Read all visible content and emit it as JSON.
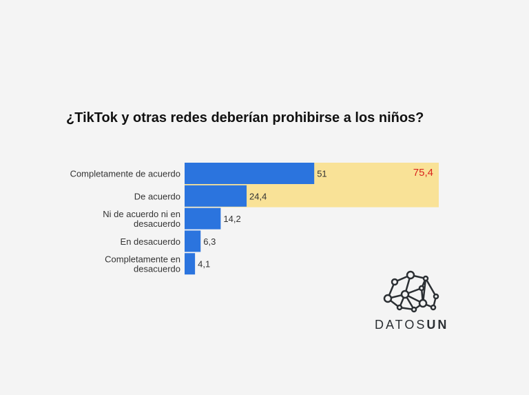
{
  "chart_data": {
    "type": "bar",
    "orientation": "horizontal",
    "title": "¿TikTok y otras redes deberían prohibirse a los niños?",
    "categories": [
      [
        "Completamente de acuerdo"
      ],
      [
        "De acuerdo"
      ],
      [
        "Ni de acuerdo ni en",
        "desacuerdo"
      ],
      [
        "En desacuerdo"
      ],
      [
        "Completamente en",
        "desacuerdo"
      ]
    ],
    "values": [
      51,
      24.4,
      14.2,
      6.3,
      4.1
    ],
    "value_labels": [
      "51",
      "24,4",
      "14,2",
      "6,3",
      "4,1"
    ],
    "highlight": {
      "value": 75.4,
      "label": "75,4",
      "rows": [
        0,
        1
      ],
      "color": "#f9e297",
      "label_color": "#d9231c"
    },
    "bar_color": "#2b74de",
    "xlim": [
      0,
      100
    ]
  },
  "logo": {
    "text_light": "DATOS",
    "text_bold": "UN"
  }
}
